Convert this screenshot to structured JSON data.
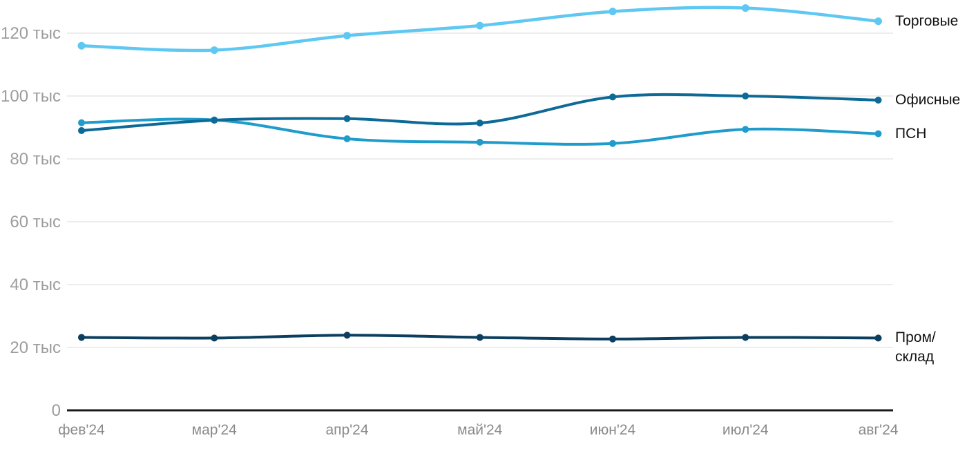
{
  "chart_data": {
    "type": "line",
    "title": "",
    "xlabel": "",
    "ylabel": "",
    "unit": "тыс",
    "grid": true,
    "legend_position": "right-of-line-ends",
    "ylim": [
      0,
      130
    ],
    "x_labels": [
      "фев'24",
      "мар'24",
      "апр'24",
      "май'24",
      "июн'24",
      "июл'24",
      "авг'24"
    ],
    "y_ticks": [
      {
        "value": 0,
        "label": "0"
      },
      {
        "value": 20,
        "label": "20 тыс"
      },
      {
        "value": 40,
        "label": "40 тыс"
      },
      {
        "value": 60,
        "label": "60 тыс"
      },
      {
        "value": 80,
        "label": "80 тыс"
      },
      {
        "value": 100,
        "label": "100 тыс"
      },
      {
        "value": 120,
        "label": "120 тыс"
      }
    ],
    "series": [
      {
        "name": "Торговые",
        "color": "#5fc8f2",
        "label_lines": [
          "Торговые"
        ],
        "values": [
          116.0,
          114.6,
          119.2,
          122.4,
          126.9,
          128.0,
          123.8
        ]
      },
      {
        "name": "ПСН",
        "color": "#1f9ccb",
        "label_lines": [
          "ПСН"
        ],
        "values": [
          91.5,
          92.4,
          86.4,
          85.3,
          84.9,
          89.4,
          88.0
        ]
      },
      {
        "name": "Офисные",
        "color": "#0d6a96",
        "label_lines": [
          "Офисные"
        ],
        "values": [
          89.0,
          92.3,
          92.8,
          91.4,
          99.7,
          100.0,
          98.7
        ]
      },
      {
        "name": "Пром/склад",
        "color": "#0c3e5f",
        "label_lines": [
          "Пром/",
          "склад"
        ],
        "values": [
          23.2,
          23.0,
          23.9,
          23.2,
          22.7,
          23.2,
          23.0
        ]
      }
    ],
    "colors": {
      "gridline": "#e7e7e7",
      "axis_line": "#1a1a1a",
      "y_tick_text": "#9c9c9c",
      "x_tick_text": "#8a8a8a",
      "legend_text": "#111111"
    }
  }
}
